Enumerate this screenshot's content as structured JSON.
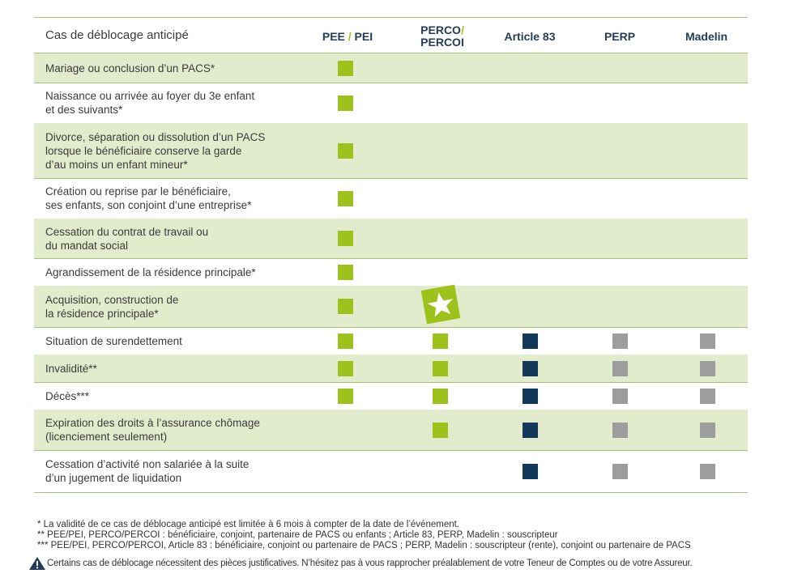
{
  "header": {
    "label": "Cas de déblocage anticipé",
    "cols": {
      "pee_a": "PEE",
      "slash": "/",
      "pee_b": "PEI",
      "perco_a": "PERCO",
      "perco_b": "PERCOI",
      "art83": "Article 83",
      "perp": "PERP",
      "madelin": "Madelin"
    }
  },
  "rows": [
    {
      "lines": [
        "Mariage ou conclusion d’un PACS*"
      ],
      "marks": [
        "green",
        "",
        "",
        "",
        ""
      ]
    },
    {
      "lines": [
        "Naissance ou arrivée au foyer du 3e enfant",
        "et des suivants*"
      ],
      "marks": [
        "green",
        "",
        "",
        "",
        ""
      ]
    },
    {
      "lines": [
        "Divorce, séparation ou dissolution d’un PACS",
        "lorsque le bénéficiaire conserve la garde",
        "d’au moins un enfant mineur*"
      ],
      "marks": [
        "green",
        "",
        "",
        "",
        ""
      ]
    },
    {
      "lines": [
        "Création ou reprise par le bénéficiaire,",
        "ses enfants, son conjoint d’une entreprise*"
      ],
      "marks": [
        "green",
        "",
        "",
        "",
        ""
      ]
    },
    {
      "lines": [
        "Cessation du contrat de travail ou",
        "du mandat social"
      ],
      "marks": [
        "green",
        "",
        "",
        "",
        ""
      ]
    },
    {
      "lines": [
        "Agrandissement de la résidence principale*"
      ],
      "marks": [
        "green",
        "",
        "",
        "",
        ""
      ]
    },
    {
      "lines": [
        "Acquisition, construction de",
        "la résidence principale*"
      ],
      "marks": [
        "green",
        "star",
        "",
        "",
        ""
      ]
    },
    {
      "lines": [
        "Situation de surendettement"
      ],
      "marks": [
        "green",
        "green",
        "navy",
        "grey",
        "grey"
      ]
    },
    {
      "lines": [
        "Invalidité**"
      ],
      "marks": [
        "green",
        "green",
        "navy",
        "grey",
        "grey"
      ]
    },
    {
      "lines": [
        "Décès***"
      ],
      "marks": [
        "green",
        "green",
        "navy",
        "grey",
        "grey"
      ]
    },
    {
      "lines": [
        "Expiration des droits à l’assurance chômage",
        "(licenciement seulement)"
      ],
      "marks": [
        "",
        "green",
        "navy",
        "grey",
        "grey"
      ]
    },
    {
      "lines": [
        "Cessation d’activité non salariée à la suite",
        "d’un jugement de liquidation"
      ],
      "marks": [
        "",
        "",
        "navy",
        "grey",
        "grey"
      ]
    }
  ],
  "footnotes": [
    "* La validité de ce cas de déblocage anticipé est limitée à 6 mois à compter de la date de l’événement.",
    "** PEE/PEI, PERCO/PERCOI : bénéficiaire, conjoint, partenaire de PACS ou enfants ; Article 83, PERP, Madelin : souscripteur",
    "*** PEE/PEI, PERCO/PERCOI, Article 83 : bénéficiaire, conjoint ou partenaire de PACS ; PERP, Madelin : souscripteur (rente), conjoint ou partenaire de PACS"
  ],
  "warning": "Certains cas de déblocage nécessitent des pièces justificatives. N’hésitez pas à vous rapprocher préalablement de votre Teneur de Comptes ou de votre Assureur.",
  "colors": {
    "green": "#9dc21b",
    "navy": "#12395a",
    "grey": "#9d9d9d",
    "row_bg": "#e2ebcb",
    "rule": "#a9c27a",
    "header_text": "#233d58"
  },
  "icons": {
    "star": "star-icon",
    "warning": "warning-icon"
  }
}
